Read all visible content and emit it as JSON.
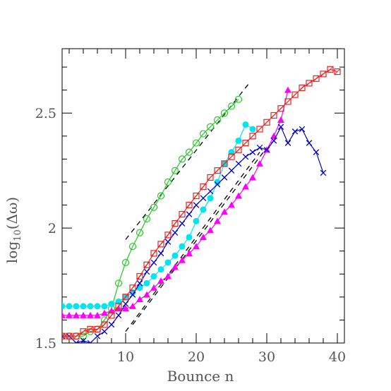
{
  "chart_data": {
    "type": "line",
    "title": "",
    "xlabel": "Bounce n",
    "ylabel_main": "log",
    "ylabel_sub": "10",
    "ylabel_arg": "(Δω)",
    "xlim": [
      1,
      41
    ],
    "ylim": [
      1.5,
      2.78
    ],
    "x_ticks": [
      10,
      20,
      30,
      40
    ],
    "y_ticks": [
      1.5,
      2,
      2.5
    ],
    "x_minor_step": 2,
    "y_minor_step": 0.1,
    "grid": false,
    "legend": "none",
    "series": [
      {
        "color": "#22cc22",
        "marker": "circle-open",
        "x": [
          1,
          2,
          3,
          4,
          5,
          6,
          7,
          8,
          9,
          10,
          11,
          12,
          13,
          14,
          15,
          16,
          17,
          18,
          19,
          20,
          21,
          22,
          23,
          24,
          25,
          26
        ],
        "y": [
          1.53,
          1.53,
          1.53,
          1.53,
          1.55,
          1.56,
          1.6,
          1.65,
          1.76,
          1.85,
          1.92,
          1.98,
          2.04,
          2.09,
          2.14,
          2.2,
          2.25,
          2.3,
          2.33,
          2.37,
          2.41,
          2.44,
          2.47,
          2.5,
          2.53,
          2.56
        ]
      },
      {
        "color": "#00e5ee",
        "marker": "circle-filled",
        "x": [
          1,
          2,
          3,
          4,
          5,
          6,
          7,
          8,
          9,
          10,
          11,
          12,
          13,
          14,
          15,
          16,
          17,
          18,
          19,
          20,
          21,
          22,
          23,
          24,
          25,
          26,
          27,
          28
        ],
        "y": [
          1.66,
          1.66,
          1.66,
          1.66,
          1.66,
          1.66,
          1.66,
          1.67,
          1.68,
          1.7,
          1.72,
          1.74,
          1.76,
          1.79,
          1.82,
          1.85,
          1.88,
          1.92,
          1.96,
          2.03,
          2.08,
          2.13,
          2.2,
          2.28,
          2.33,
          2.38,
          2.45,
          2.43
        ]
      },
      {
        "color": "#ff00ff",
        "marker": "triangle-filled",
        "x": [
          1,
          2,
          3,
          4,
          5,
          6,
          7,
          8,
          9,
          10,
          11,
          12,
          13,
          14,
          15,
          16,
          17,
          18,
          19,
          20,
          21,
          22,
          23,
          24,
          25,
          26,
          27,
          28,
          29,
          30,
          31,
          32,
          33
        ],
        "y": [
          1.62,
          1.62,
          1.62,
          1.62,
          1.62,
          1.62,
          1.63,
          1.64,
          1.65,
          1.65,
          1.66,
          1.69,
          1.71,
          1.74,
          1.77,
          1.79,
          1.83,
          1.86,
          1.89,
          1.92,
          1.96,
          1.99,
          2.03,
          2.07,
          2.1,
          2.14,
          2.18,
          2.22,
          2.28,
          2.34,
          2.4,
          2.47,
          2.6
        ]
      },
      {
        "color": "#0000cc",
        "marker": "x",
        "x": [
          1,
          2,
          3,
          4,
          5,
          6,
          7,
          8,
          9,
          10,
          11,
          12,
          13,
          14,
          15,
          16,
          17,
          18,
          19,
          20,
          21,
          22,
          23,
          24,
          25,
          26,
          27,
          28,
          29,
          30,
          31,
          32,
          33,
          34,
          35,
          36,
          37,
          38
        ],
        "y": [
          1.53,
          1.53,
          1.5,
          1.51,
          1.5,
          1.53,
          1.55,
          1.58,
          1.62,
          1.67,
          1.71,
          1.76,
          1.81,
          1.85,
          1.89,
          1.94,
          1.98,
          2.02,
          2.06,
          2.1,
          2.13,
          2.16,
          2.19,
          2.22,
          2.25,
          2.28,
          2.31,
          2.33,
          2.35,
          2.34,
          2.38,
          2.44,
          2.37,
          2.42,
          2.43,
          2.37,
          2.33,
          2.24
        ]
      },
      {
        "color": "#ee2222",
        "marker": "square-open",
        "x": [
          1,
          2,
          3,
          4,
          5,
          6,
          7,
          8,
          9,
          10,
          11,
          12,
          13,
          14,
          15,
          16,
          17,
          18,
          19,
          20,
          21,
          22,
          23,
          24,
          25,
          26,
          27,
          28,
          29,
          30,
          31,
          32,
          33,
          34,
          35,
          36,
          37,
          38,
          39,
          40
        ],
        "y": [
          1.53,
          1.53,
          1.53,
          1.55,
          1.56,
          1.56,
          1.58,
          1.62,
          1.66,
          1.7,
          1.74,
          1.79,
          1.84,
          1.89,
          1.93,
          1.97,
          2.02,
          2.06,
          2.1,
          2.14,
          2.18,
          2.22,
          2.25,
          2.28,
          2.31,
          2.34,
          2.37,
          2.4,
          2.43,
          2.46,
          2.49,
          2.52,
          2.55,
          2.58,
          2.61,
          2.63,
          2.65,
          2.67,
          2.69,
          2.68
        ]
      }
    ],
    "reference_lines": [
      {
        "color": "#000000",
        "style": "dashed",
        "x": [
          10,
          27.5
        ],
        "y": [
          1.95,
          2.63
        ]
      },
      {
        "color": "#000000",
        "style": "dashed",
        "x": [
          11,
          30
        ],
        "y": [
          1.58,
          2.35
        ]
      },
      {
        "color": "#000000",
        "style": "dashed",
        "x": [
          10,
          29
        ],
        "y": [
          1.55,
          2.33
        ]
      }
    ]
  }
}
